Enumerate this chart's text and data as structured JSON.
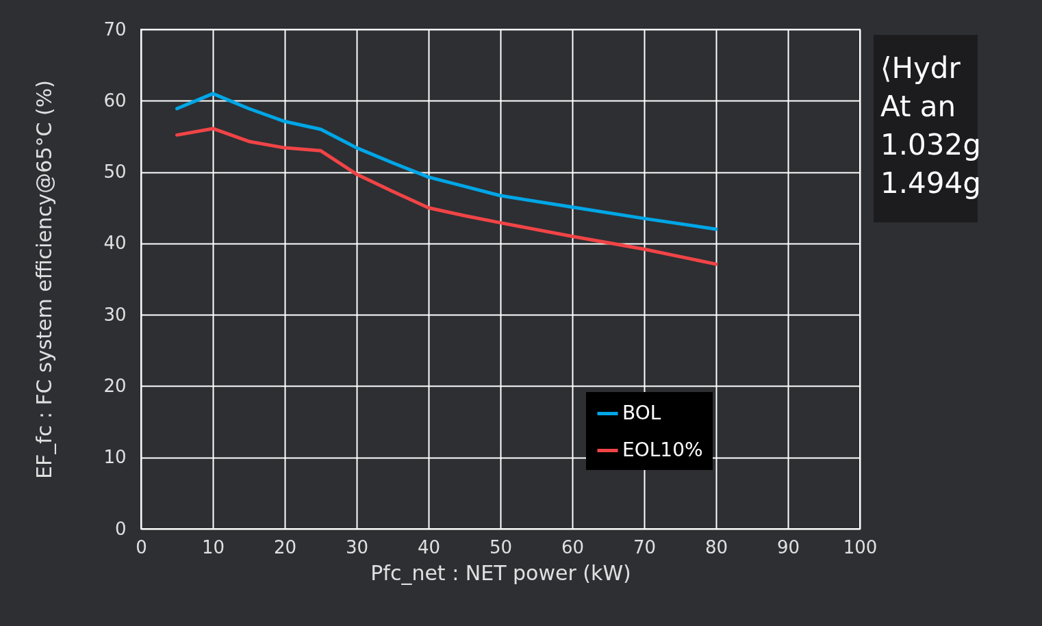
{
  "chart_data": {
    "type": "line",
    "xlabel": "Pfc_net : NET power  (kW)",
    "ylabel": "EF_fc : FC system efficiency@65°C   (%)",
    "x": [
      5,
      10,
      15,
      20,
      25,
      30,
      35,
      40,
      45,
      50,
      60,
      70,
      80
    ],
    "series": [
      {
        "name": "BOL",
        "color": "#00a6e6",
        "values": [
          58.9,
          61.0,
          58.9,
          57.1,
          56.0,
          53.4,
          51.3,
          49.3,
          48.0,
          46.7,
          45.1,
          43.5,
          42.0
        ]
      },
      {
        "name": "EOL10%",
        "color": "#f04446",
        "values": [
          55.2,
          56.1,
          54.3,
          53.4,
          53.0,
          49.7,
          47.3,
          45.0,
          43.9,
          42.9,
          41.0,
          39.2,
          37.1
        ]
      }
    ],
    "xlim": [
      0,
      100
    ],
    "xticks": [
      0,
      10,
      20,
      30,
      40,
      50,
      60,
      70,
      80,
      90,
      100
    ],
    "ylim": [
      0,
      70
    ],
    "yticks": [
      0,
      10,
      20,
      30,
      40,
      50,
      60,
      70
    ],
    "grid": true,
    "legend": "bottom right",
    "line_style": "solid",
    "annotations": [
      "⟨Hydr",
      "At an",
      "1.032g",
      "1.494g"
    ]
  }
}
